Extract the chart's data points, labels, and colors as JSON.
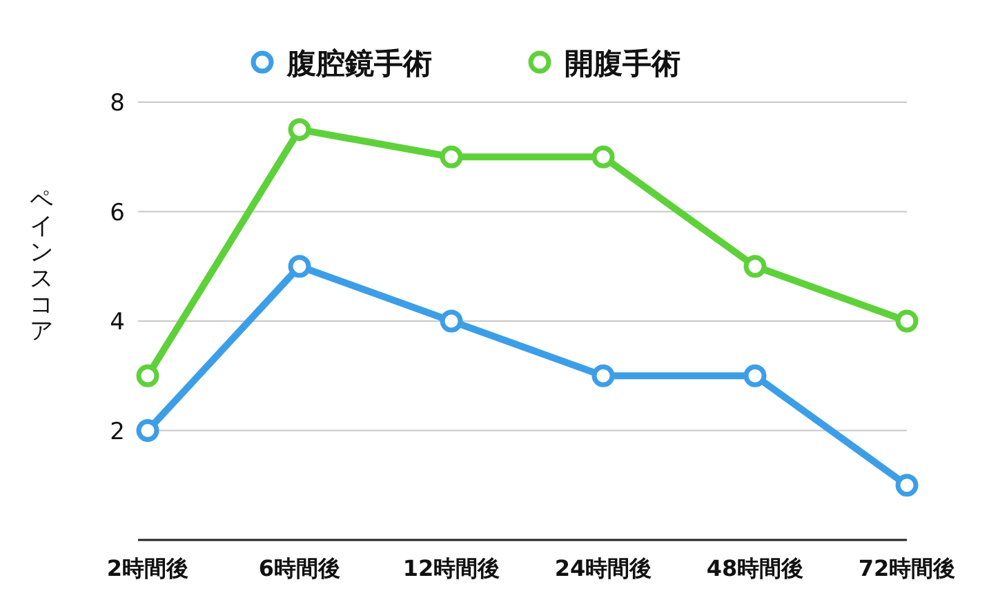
{
  "chart_data": {
    "type": "line",
    "ylabel": "ペインスコア",
    "categories": [
      "2時間後",
      "6時間後",
      "12時間後",
      "24時間後",
      "48時間後",
      "72時間後"
    ],
    "series": [
      {
        "name": "腹腔鏡手術",
        "color": "#3d9ee8",
        "values": [
          2,
          5,
          4,
          3,
          3,
          1
        ]
      },
      {
        "name": "開腹手術",
        "color": "#5ed13a",
        "values": [
          3,
          7.5,
          7,
          7,
          5,
          4
        ]
      }
    ],
    "ylim": [
      0,
      8
    ],
    "yticks": [
      2,
      4,
      6,
      8
    ],
    "grid": "y",
    "legend": "top",
    "marker": "circle",
    "line_style": "solid"
  }
}
